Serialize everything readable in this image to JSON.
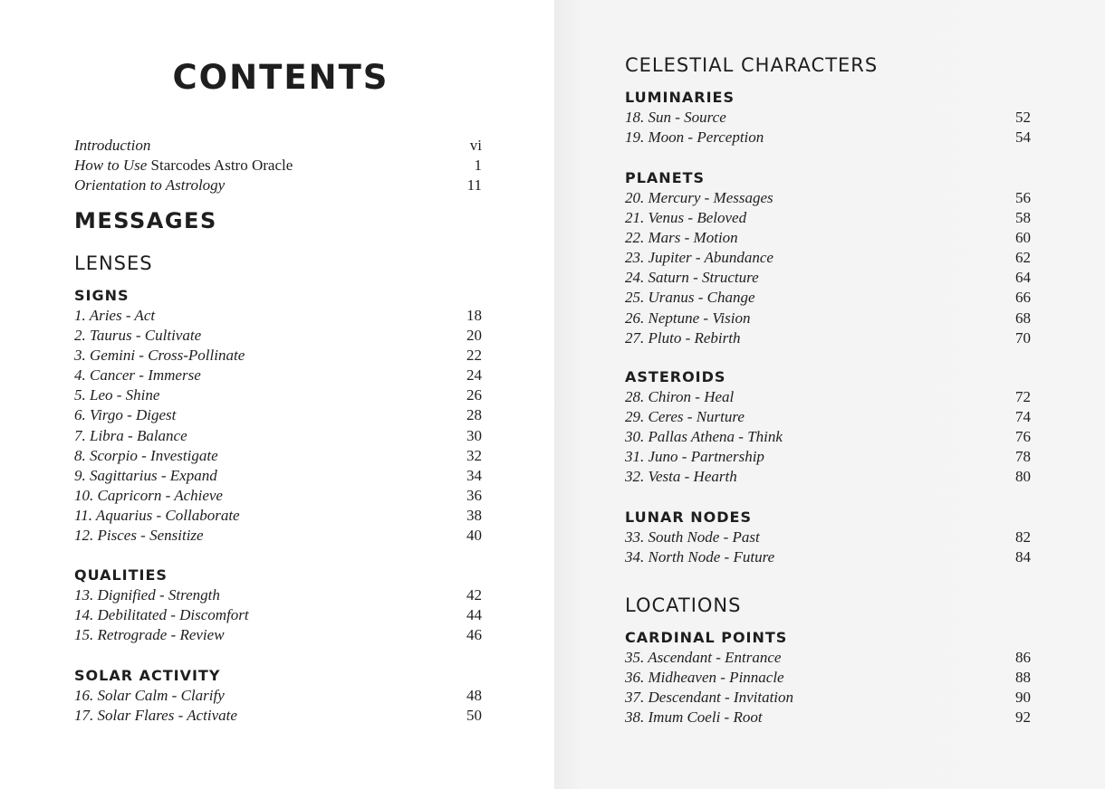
{
  "left": {
    "title": "CONTENTS",
    "front": [
      {
        "label": "Introduction",
        "page": "vi"
      },
      {
        "label": "How to Use ",
        "upright": "Starcodes Astro Oracle",
        "page": "1"
      },
      {
        "label": "Orientation to Astrology",
        "page": "11"
      }
    ],
    "part": "MESSAGES",
    "section": "LENSES",
    "groups": [
      {
        "heading": "SIGNS",
        "entries": [
          {
            "label": "1. Aries - Act",
            "page": "18"
          },
          {
            "label": "2. Taurus - Cultivate",
            "page": "20"
          },
          {
            "label": "3. Gemini - Cross-Pollinate",
            "page": "22"
          },
          {
            "label": "4. Cancer - Immerse",
            "page": "24"
          },
          {
            "label": "5. Leo - Shine",
            "page": "26"
          },
          {
            "label": "6. Virgo - Digest",
            "page": "28"
          },
          {
            "label": "7. Libra - Balance",
            "page": "30"
          },
          {
            "label": "8. Scorpio - Investigate",
            "page": "32"
          },
          {
            "label": "9. Sagittarius - Expand",
            "page": "34"
          },
          {
            "label": "10. Capricorn - Achieve",
            "page": "36"
          },
          {
            "label": "11. Aquarius - Collaborate",
            "page": "38"
          },
          {
            "label": "12. Pisces - Sensitize",
            "page": "40"
          }
        ]
      },
      {
        "heading": "QUALITIES",
        "entries": [
          {
            "label": "13. Dignified - Strength",
            "page": "42"
          },
          {
            "label": "14. Debilitated - Discomfort",
            "page": "44"
          },
          {
            "label": "15. Retrograde - Review",
            "page": "46"
          }
        ]
      },
      {
        "heading": "SOLAR ACTIVITY",
        "entries": [
          {
            "label": "16. Solar Calm - Clarify",
            "page": "48"
          },
          {
            "label": "17. Solar Flares - Activate",
            "page": "50"
          }
        ]
      }
    ]
  },
  "right": {
    "section1": "CELESTIAL CHARACTERS",
    "groups1": [
      {
        "heading": "LUMINARIES",
        "entries": [
          {
            "label": "18. Sun - Source",
            "page": "52"
          },
          {
            "label": "19. Moon - Perception",
            "page": "54"
          }
        ]
      },
      {
        "heading": "PLANETS",
        "entries": [
          {
            "label": "20. Mercury - Messages",
            "page": "56"
          },
          {
            "label": "21. Venus - Beloved",
            "page": "58"
          },
          {
            "label": "22. Mars - Motion",
            "page": "60"
          },
          {
            "label": "23. Jupiter - Abundance",
            "page": "62"
          },
          {
            "label": "24. Saturn - Structure",
            "page": "64"
          },
          {
            "label": "25. Uranus - Change",
            "page": "66"
          },
          {
            "label": "26. Neptune - Vision",
            "page": "68"
          },
          {
            "label": "27. Pluto - Rebirth",
            "page": "70"
          }
        ]
      },
      {
        "heading": "ASTEROIDS",
        "entries": [
          {
            "label": "28. Chiron - Heal",
            "page": "72"
          },
          {
            "label": "29. Ceres - Nurture",
            "page": "74"
          },
          {
            "label": "30. Pallas Athena - Think",
            "page": "76"
          },
          {
            "label": "31. Juno - Partnership",
            "page": "78"
          },
          {
            "label": "32. Vesta - Hearth",
            "page": "80"
          }
        ]
      },
      {
        "heading": "LUNAR NODES",
        "entries": [
          {
            "label": "33. South Node - Past",
            "page": "82"
          },
          {
            "label": "34. North Node - Future",
            "page": "84"
          }
        ]
      }
    ],
    "section2": "LOCATIONS",
    "groups2": [
      {
        "heading": "CARDINAL POINTS",
        "entries": [
          {
            "label": "35. Ascendant - Entrance",
            "page": "86"
          },
          {
            "label": "36. Midheaven - Pinnacle",
            "page": "88"
          },
          {
            "label": "37. Descendant - Invitation",
            "page": "90"
          },
          {
            "label": "38. Imum Coeli - Root",
            "page": "92"
          }
        ]
      }
    ]
  }
}
